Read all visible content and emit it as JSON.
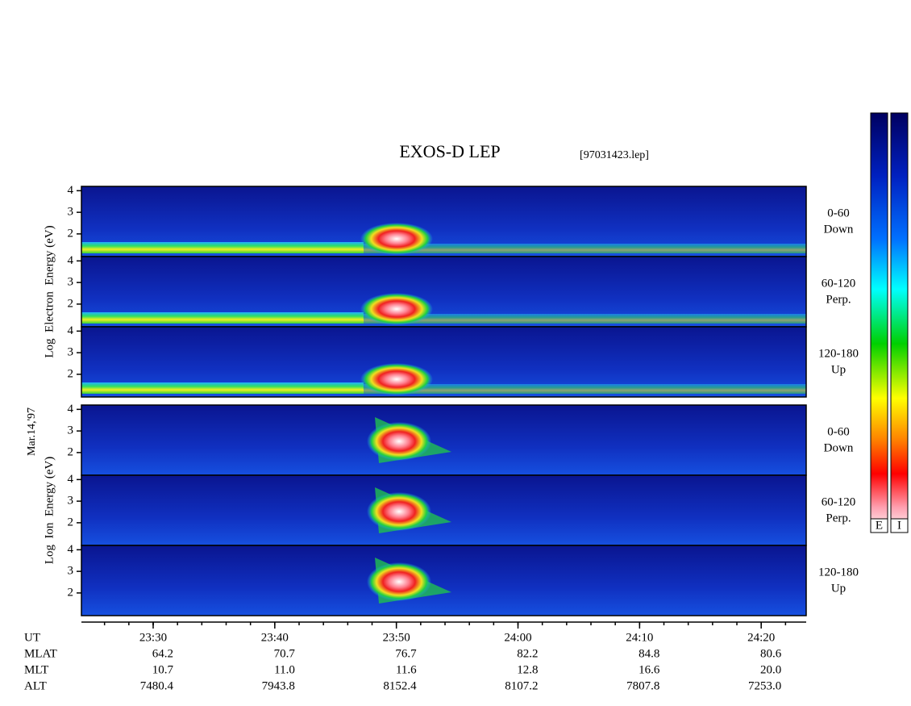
{
  "chart_data": {
    "type": "spectrogram",
    "title": "EXOS-D LEP",
    "file": "[97031423.lep]",
    "date": "Mar.14,'97",
    "ylim": [
      0.95,
      4.2
    ],
    "yticks": [
      2,
      3,
      4
    ],
    "xlim": [
      1404.1,
      1463.7
    ],
    "xticks": [
      {
        "value": 1410,
        "label": "23:30"
      },
      {
        "value": 1420,
        "label": "23:40"
      },
      {
        "value": 1430,
        "label": "23:50"
      },
      {
        "value": 1440,
        "label": "24:00"
      },
      {
        "value": 1450,
        "label": "24:10"
      },
      {
        "value": 1460,
        "label": "24:20"
      }
    ],
    "minor_tick_step": 2,
    "groups": [
      {
        "species": "electron",
        "label": "Log  Electron  Energy (eV)",
        "panels": [
          {
            "angle": "0-60",
            "direction": "Down"
          },
          {
            "angle": "60-120",
            "direction": "Perp."
          },
          {
            "angle": "120-180",
            "direction": "Up"
          }
        ]
      },
      {
        "species": "ion",
        "label": "Log  Ion  Energy (eV)",
        "panels": [
          {
            "angle": "0-60",
            "direction": "Down"
          },
          {
            "angle": "60-120",
            "direction": "Perp."
          },
          {
            "angle": "120-180",
            "direction": "Up"
          }
        ]
      }
    ],
    "ut_label": "UT",
    "orbit": [
      {
        "label": "MLAT",
        "values": [
          "64.2",
          "70.7",
          "76.7",
          "82.2",
          "84.8",
          "80.6"
        ]
      },
      {
        "label": "MLT",
        "values": [
          "10.7",
          "11.0",
          "11.6",
          "12.8",
          "16.6",
          "20.0"
        ]
      },
      {
        "label": "ALT",
        "values": [
          "7480.4",
          "7943.8",
          "8152.4",
          "8107.2",
          "7807.8",
          "7253.0"
        ]
      }
    ],
    "colorbars": [
      "E",
      "I"
    ]
  }
}
